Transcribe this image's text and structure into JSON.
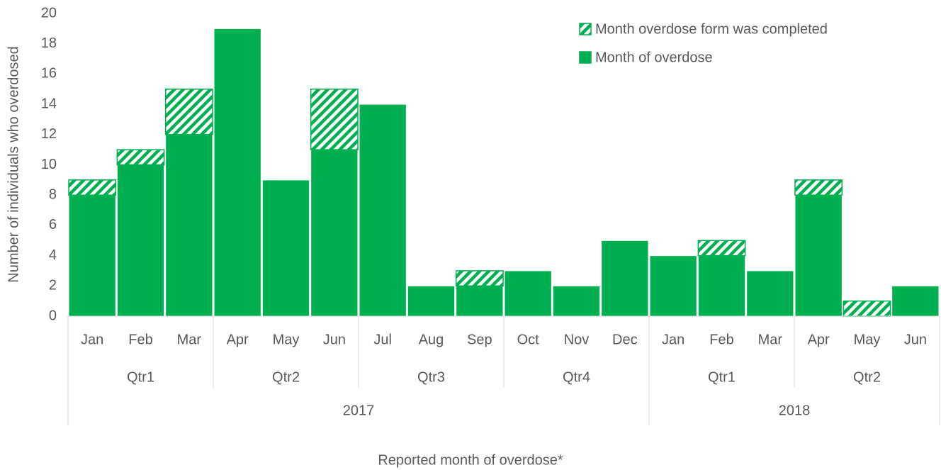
{
  "chart_data": {
    "type": "stacked_bar",
    "x_label": "Reported month of overdose*",
    "y_label": "Number of individuals who overdosed",
    "years": [
      {
        "label": "2017",
        "quarters": [
          {
            "label": "Qtr1",
            "months": [
              "Jan",
              "Feb",
              "Mar"
            ]
          },
          {
            "label": "Qtr2",
            "months": [
              "Apr",
              "May",
              "Jun"
            ]
          },
          {
            "label": "Qtr3",
            "months": [
              "Jul",
              "Aug",
              "Sep"
            ]
          },
          {
            "label": "Qtr4",
            "months": [
              "Oct",
              "Nov",
              "Dec"
            ]
          }
        ]
      },
      {
        "label": "2018",
        "quarters": [
          {
            "label": "Qtr1",
            "months": [
              "Jan",
              "Feb",
              "Mar"
            ]
          },
          {
            "label": "Qtr2",
            "months": [
              "Apr",
              "May",
              "Jun"
            ]
          }
        ]
      }
    ],
    "series": [
      {
        "name": "Month of overdose",
        "color": "#00b050",
        "pattern": "solid",
        "values": [
          8,
          10,
          12,
          19,
          9,
          11,
          14,
          2,
          2,
          3,
          2,
          5,
          4,
          4,
          3,
          8,
          0,
          2
        ]
      },
      {
        "name": "Month overdose form was completed",
        "color": "#00b050",
        "pattern": "hatch",
        "values": [
          1,
          1,
          3,
          0,
          0,
          4,
          0,
          0,
          1,
          0,
          0,
          0,
          0,
          1,
          0,
          1,
          1,
          0
        ]
      }
    ],
    "ylim": [
      0,
      20
    ],
    "yticks": [
      0,
      2,
      4,
      6,
      8,
      10,
      12,
      14,
      16,
      18,
      20
    ],
    "grid": false,
    "legend": "upper right"
  }
}
